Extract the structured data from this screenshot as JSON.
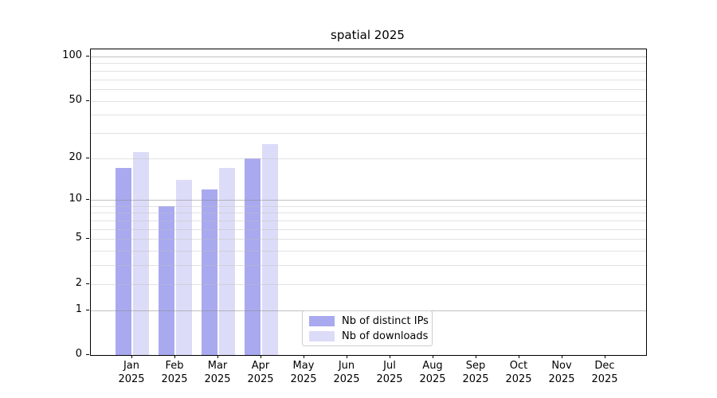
{
  "chart_data": {
    "type": "bar",
    "title": "spatial 2025",
    "x_categories": [
      "Jan",
      "Feb",
      "Mar",
      "Apr",
      "May",
      "Jun",
      "Jul",
      "Aug",
      "Sep",
      "Oct",
      "Nov",
      "Dec"
    ],
    "x_year": "2025",
    "series": [
      {
        "name": "Nb of distinct IPs",
        "color": "#a9a9f0",
        "values": [
          17,
          9,
          12,
          20,
          0,
          0,
          0,
          0,
          0,
          0,
          0,
          0
        ]
      },
      {
        "name": "Nb of downloads",
        "color": "#dcdcf8",
        "values": [
          22,
          14,
          17,
          25,
          0,
          0,
          0,
          0,
          0,
          0,
          0,
          0
        ]
      }
    ],
    "y_axis": {
      "scale": "log1p",
      "tick_values": [
        100,
        50,
        20,
        10,
        5,
        2,
        1,
        0
      ],
      "minor_gridline_values": [
        90,
        80,
        70,
        60,
        50,
        40,
        30,
        20,
        9,
        8,
        7,
        6,
        5,
        4,
        3,
        2
      ],
      "major_gridline_values": [
        100,
        10,
        1
      ],
      "top_value": 112
    },
    "legend": {
      "position": "bottom-center"
    },
    "grid": true,
    "colors": {
      "minor_grid": "#e6e6e6",
      "major_grid": "#c6c6c6",
      "spine": "#000000",
      "background": "#ffffff"
    }
  }
}
